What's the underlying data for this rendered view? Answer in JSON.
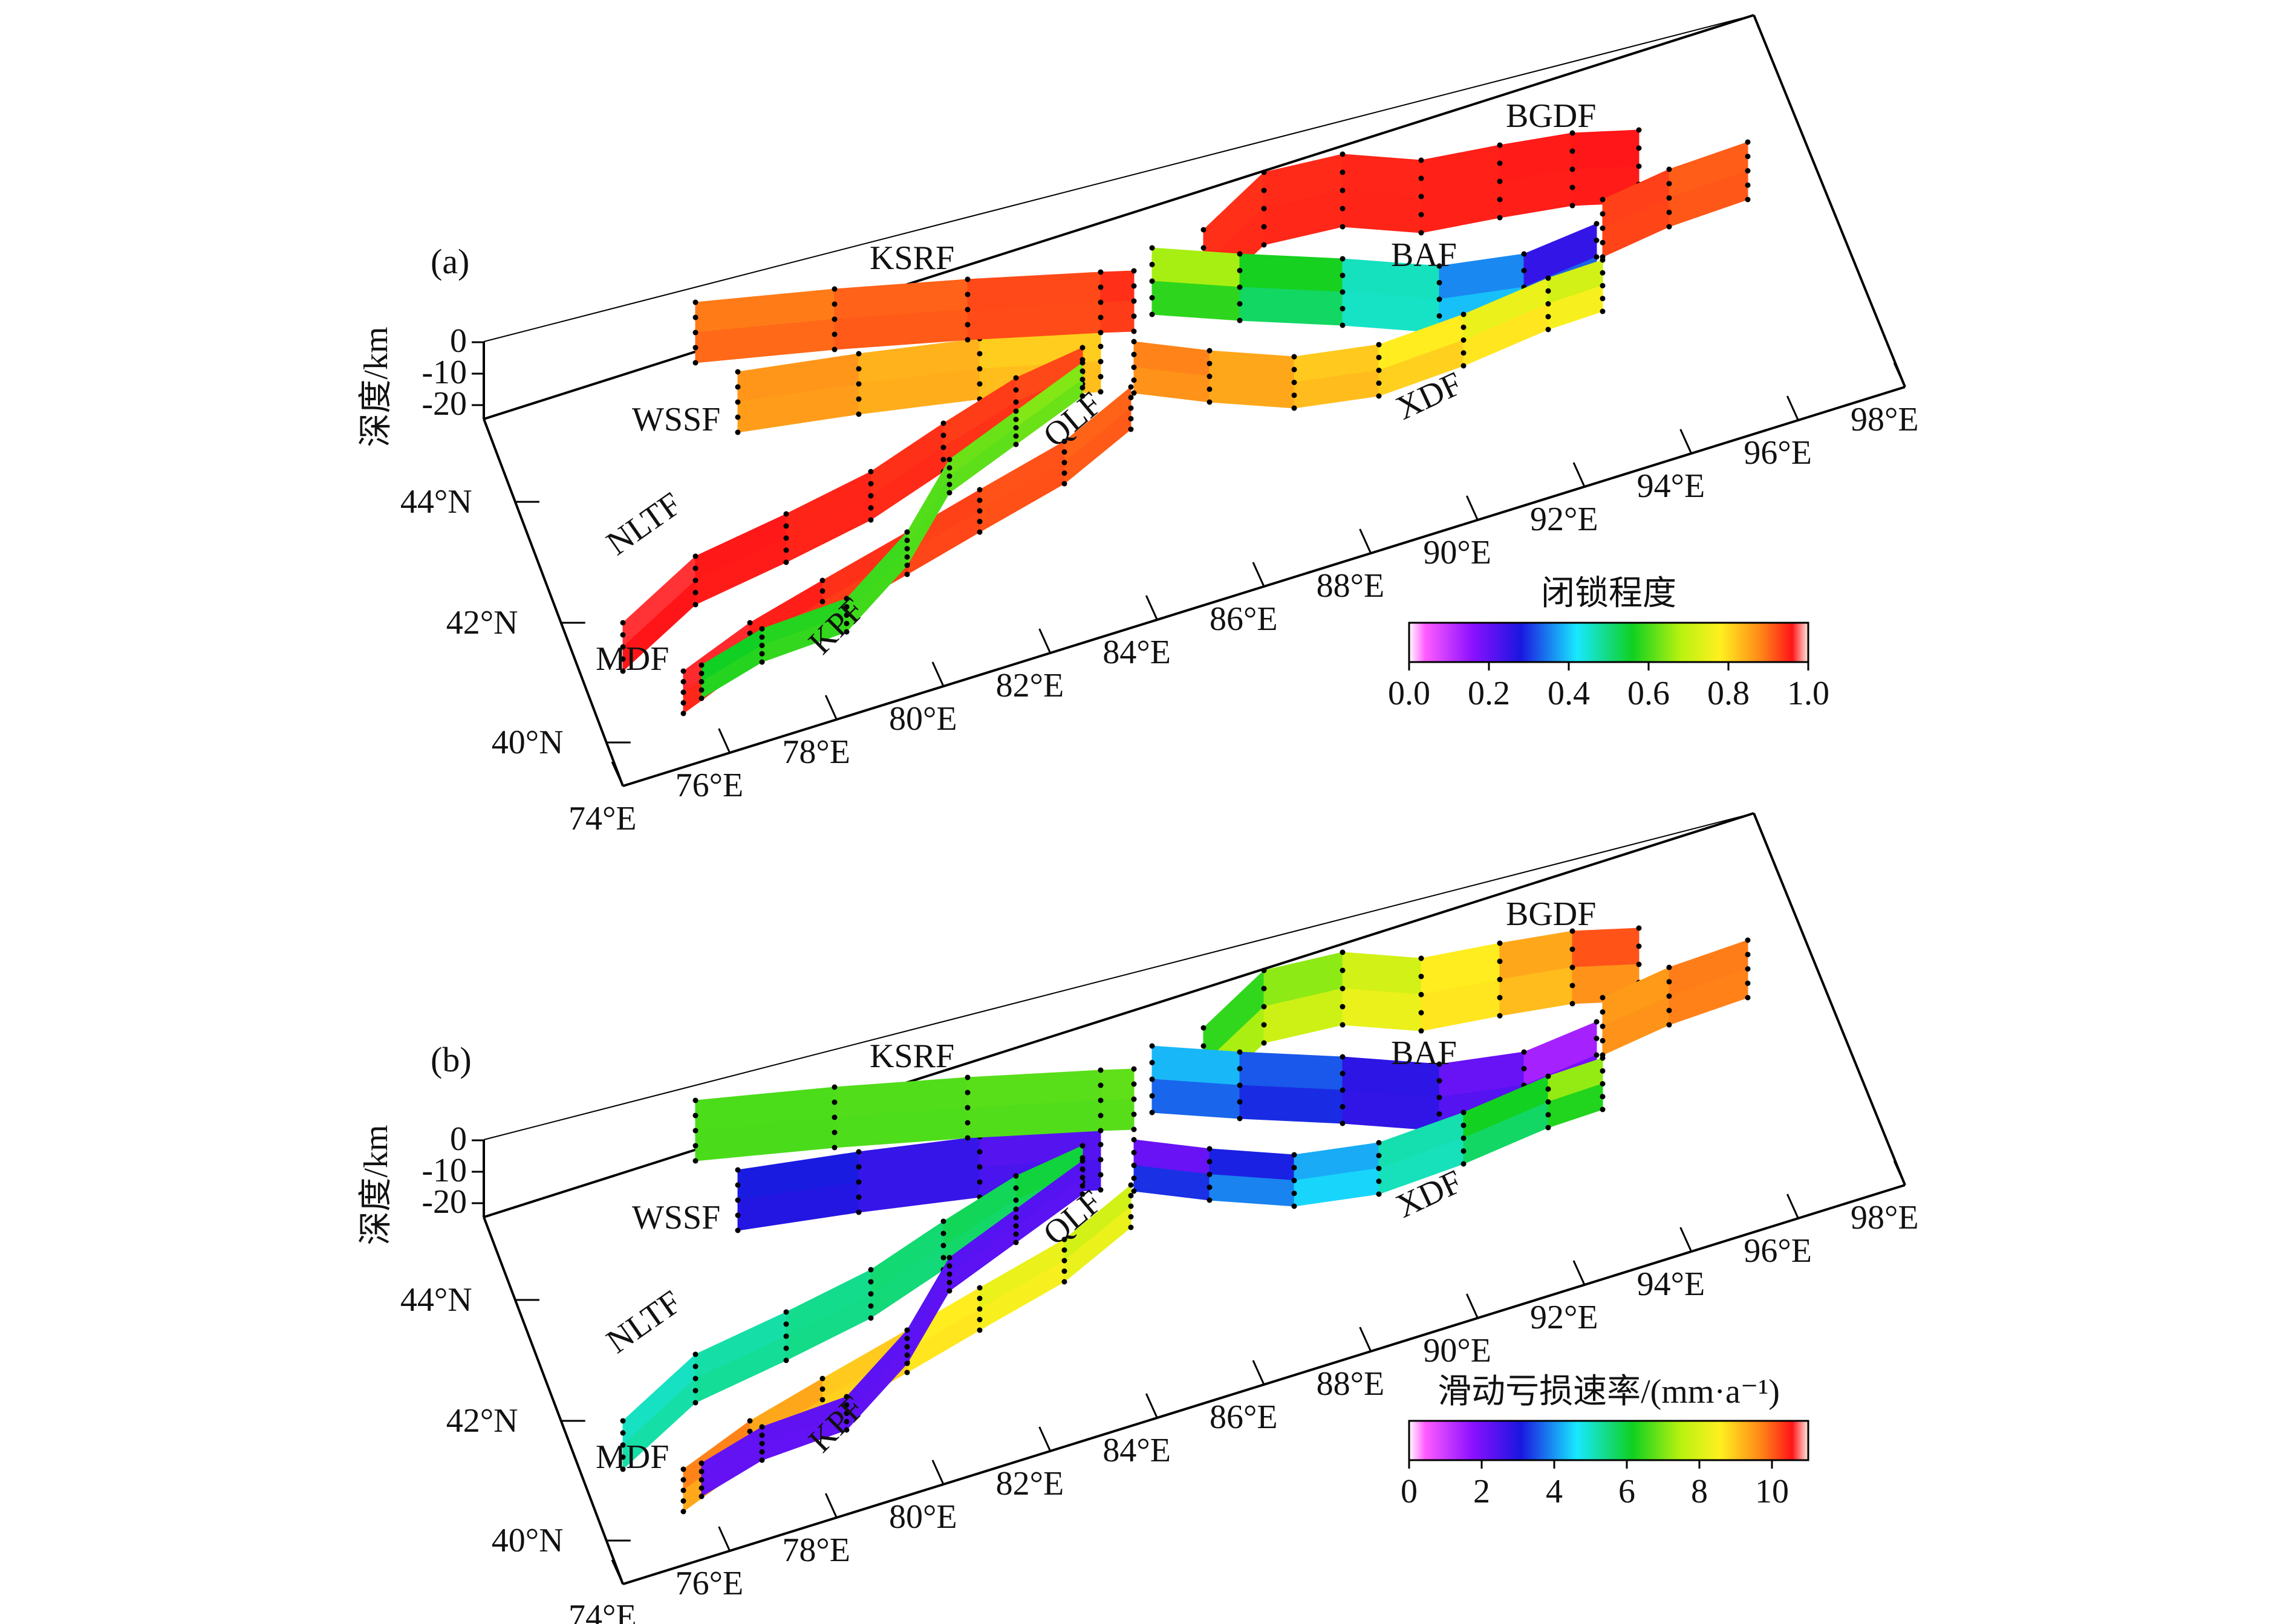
{
  "legend_stops": [
    {
      "t": 0.0,
      "c": "#ffffff"
    },
    {
      "t": 0.04,
      "c": "#ff5cff"
    },
    {
      "t": 0.16,
      "c": "#8a10ff"
    },
    {
      "t": 0.28,
      "c": "#1a16e0"
    },
    {
      "t": 0.42,
      "c": "#18e8ff"
    },
    {
      "t": 0.56,
      "c": "#10d020"
    },
    {
      "t": 0.68,
      "c": "#b8f210"
    },
    {
      "t": 0.78,
      "c": "#fff020"
    },
    {
      "t": 0.88,
      "c": "#ff8818"
    },
    {
      "t": 0.96,
      "c": "#ff1418"
    },
    {
      "t": 1.0,
      "c": "#ffe8e0"
    }
  ],
  "axes": {
    "lon_labels": [
      "74°E",
      "76°E",
      "78°E",
      "80°E",
      "82°E",
      "84°E",
      "86°E",
      "88°E",
      "90°E",
      "92°E",
      "94°E",
      "96°E",
      "98°E"
    ],
    "lat_labels": [
      "40°N",
      "42°N",
      "44°N"
    ],
    "depth_title": "深度/km",
    "depth_labels": [
      "0",
      "-10",
      "-20"
    ]
  },
  "faults": [
    "KSRF",
    "WSSF",
    "NLTF",
    "MDF",
    "KPF",
    "QLF",
    "BAF",
    "XDF",
    "BGDF"
  ],
  "panels": [
    {
      "label": "(a)",
      "colorbar_title": "闭锁程度",
      "colorbar_ticks": [
        "0.0",
        "0.2",
        "0.4",
        "0.6",
        "0.8",
        "1.0"
      ],
      "fault_values": {
        "KSRF": {
          "from": 0.88,
          "to": 0.95,
          "dip": 0.92
        },
        "WSSF": {
          "from": 0.88,
          "to": 0.8,
          "dip": 0.85
        },
        "NLTF": {
          "from": 0.97,
          "to": 0.92,
          "dip": 0.95
        },
        "MDF": {
          "from": 0.97,
          "to": 0.9,
          "dip": 0.92
        },
        "KPF": {
          "from": 0.55,
          "to": 0.65,
          "dip": 0.6
        },
        "QLF": {
          "from": 0.9,
          "to": 0.7,
          "dip": 0.85
        },
        "BAF": {
          "from": 0.72,
          "to": 0.2,
          "dip": 0.45
        },
        "XDF": {
          "from": 0.95,
          "to": 0.88,
          "dip": 0.9
        },
        "BGDF": {
          "from": 0.94,
          "to": 0.96,
          "dip": 0.95
        },
        "EXT": {
          "from": 0.94,
          "to": 0.9,
          "dip": 0.92
        }
      }
    },
    {
      "label": "(b)",
      "colorbar_title": "滑动亏损速率/(mm·a⁻¹)",
      "colorbar_ticks": [
        "0",
        "2",
        "4",
        "6",
        "8",
        "10"
      ],
      "fault_values": {
        "KSRF": {
          "from": 0.6,
          "to": 0.62,
          "dip": 0.6
        },
        "WSSF": {
          "from": 0.3,
          "to": 0.2,
          "dip": 0.25
        },
        "NLTF": {
          "from": 0.45,
          "to": 0.55,
          "dip": 0.5
        },
        "MDF": {
          "from": 0.9,
          "to": 0.7,
          "dip": 0.8
        },
        "KPF": {
          "from": 0.2,
          "to": 0.22,
          "dip": 0.2
        },
        "QLF": {
          "from": 0.15,
          "to": 0.7,
          "dip": 0.45
        },
        "BAF": {
          "from": 0.42,
          "to": 0.1,
          "dip": 0.25
        },
        "XDF": {
          "from": 0.1,
          "to": 0.4,
          "dip": 0.3
        },
        "BGDF": {
          "from": 0.55,
          "to": 0.95,
          "dip": 0.8
        },
        "EXT": {
          "from": 0.85,
          "to": 0.9,
          "dip": 0.88
        }
      }
    }
  ]
}
